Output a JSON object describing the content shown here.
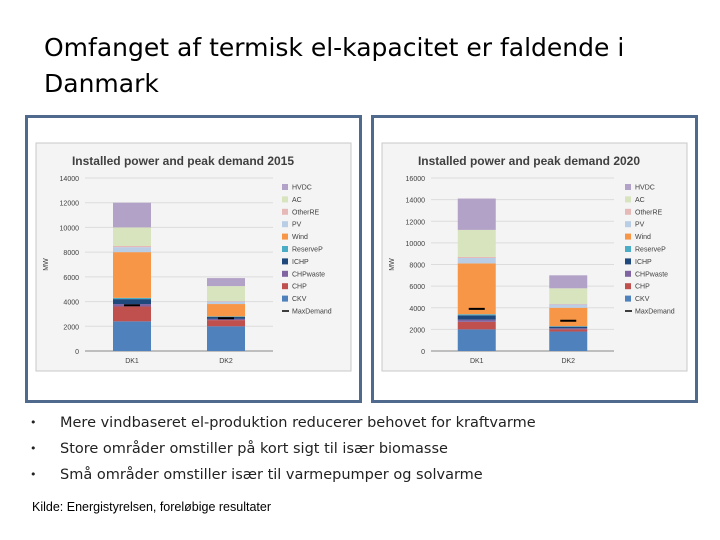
{
  "slide": {
    "title": "Omfanget af termisk el-kapacitet er faldende i Danmark",
    "bullets": [
      "Mere vindbaseret el-produktion reducerer behovet for kraftvarme",
      "Store områder omstiller på kort sigt til især biomasse",
      "Små områder omstiller især til varmepumper og solvarme"
    ],
    "bullet_glyph": "•",
    "source": "Kilde: Energistyrelsen, foreløbige resultater"
  },
  "colors": {
    "CKV": "#4f81bd",
    "CHP": "#c0504d",
    "CHPwaste": "#8064a2",
    "ICHP": "#1f497d",
    "ReserveP": "#4bacc6",
    "Wind": "#f79646",
    "PV": "#b9cde5",
    "OtherRE": "#e6b9b8",
    "AC": "#d7e4bd",
    "HVDC": "#b3a2c7",
    "MaxDemand": "#000000",
    "frame": "#4f6a8c"
  },
  "chart_data": [
    {
      "type": "bar",
      "title": "Installed power and peak demand 2015",
      "ylabel": "MW",
      "categories": [
        "DK1",
        "DK2"
      ],
      "ylim": [
        0,
        14000
      ],
      "yticks": [
        0,
        2000,
        4000,
        6000,
        8000,
        10000,
        12000,
        14000
      ],
      "series": [
        {
          "name": "CKV",
          "color_key": "CKV",
          "values": [
            2400,
            2000
          ]
        },
        {
          "name": "CHP",
          "color_key": "CHP",
          "values": [
            1200,
            500
          ]
        },
        {
          "name": "CHPwaste",
          "color_key": "CHPwaste",
          "values": [
            200,
            100
          ]
        },
        {
          "name": "ICHP",
          "color_key": "ICHP",
          "values": [
            400,
            150
          ]
        },
        {
          "name": "ReserveP",
          "color_key": "ReserveP",
          "values": [
            100,
            50
          ]
        },
        {
          "name": "Wind",
          "color_key": "Wind",
          "values": [
            3700,
            1000
          ]
        },
        {
          "name": "PV",
          "color_key": "PV",
          "values": [
            400,
            200
          ]
        },
        {
          "name": "OtherRE",
          "color_key": "OtherRE",
          "values": [
            100,
            50
          ]
        },
        {
          "name": "AC",
          "color_key": "AC",
          "values": [
            1500,
            1200
          ]
        },
        {
          "name": "HVDC",
          "color_key": "HVDC",
          "values": [
            2000,
            650
          ]
        }
      ],
      "max_demand": {
        "name": "MaxDemand",
        "values": [
          3700,
          2650
        ]
      },
      "legend": [
        "HVDC",
        "AC",
        "OtherRE",
        "PV",
        "Wind",
        "ReserveP",
        "ICHP",
        "CHPwaste",
        "CHP",
        "CKV",
        "MaxDemand"
      ],
      "legend_position": "right"
    },
    {
      "type": "bar",
      "title": "Installed power and peak demand 2020",
      "ylabel": "MW",
      "categories": [
        "DK1",
        "DK2"
      ],
      "ylim": [
        0,
        16000
      ],
      "yticks": [
        0,
        2000,
        4000,
        6000,
        8000,
        10000,
        12000,
        14000,
        16000
      ],
      "series": [
        {
          "name": "CKV",
          "color_key": "CKV",
          "values": [
            2000,
            1800
          ]
        },
        {
          "name": "CHP",
          "color_key": "CHP",
          "values": [
            700,
            200
          ]
        },
        {
          "name": "CHPwaste",
          "color_key": "CHPwaste",
          "values": [
            200,
            100
          ]
        },
        {
          "name": "ICHP",
          "color_key": "ICHP",
          "values": [
            400,
            150
          ]
        },
        {
          "name": "ReserveP",
          "color_key": "ReserveP",
          "values": [
            100,
            50
          ]
        },
        {
          "name": "Wind",
          "color_key": "Wind",
          "values": [
            4700,
            1700
          ]
        },
        {
          "name": "PV",
          "color_key": "PV",
          "values": [
            500,
            300
          ]
        },
        {
          "name": "OtherRE",
          "color_key": "OtherRE",
          "values": [
            100,
            50
          ]
        },
        {
          "name": "AC",
          "color_key": "AC",
          "values": [
            2500,
            1450
          ]
        },
        {
          "name": "HVDC",
          "color_key": "HVDC",
          "values": [
            2900,
            1200
          ]
        }
      ],
      "max_demand": {
        "name": "MaxDemand",
        "values": [
          3900,
          2800
        ]
      },
      "legend": [
        "HVDC",
        "AC",
        "OtherRE",
        "PV",
        "Wind",
        "ReserveP",
        "ICHP",
        "CHPwaste",
        "CHP",
        "CKV",
        "MaxDemand"
      ],
      "legend_position": "right"
    }
  ]
}
